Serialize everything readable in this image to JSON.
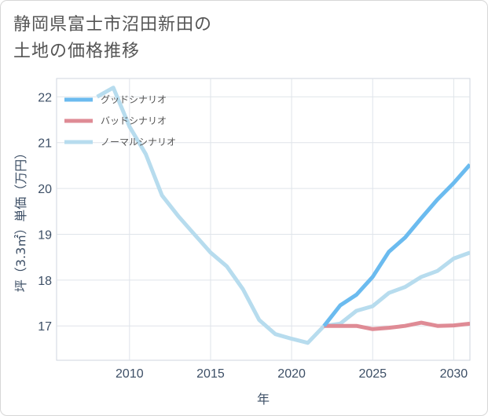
{
  "chart_data": {
    "type": "line",
    "title": [
      "静岡県富士市沼田新田の",
      "土地の価格推移"
    ],
    "xlabel": "年",
    "ylabel": "坪（3.3㎡）単価（万円）",
    "xlim": [
      2005.5,
      2031
    ],
    "ylim": [
      16.25,
      22.4
    ],
    "xticks": [
      2010,
      2015,
      2020,
      2025,
      2030
    ],
    "yticks": [
      17,
      18,
      19,
      20,
      21,
      22
    ],
    "grid": true,
    "legend_position": "top-left",
    "series": [
      {
        "name": "グッドシナリオ",
        "color": "#6bbbef",
        "x": [
          2022,
          2023,
          2024,
          2025,
          2026,
          2027,
          2028,
          2029,
          2030,
          2031
        ],
        "values": [
          17.0,
          17.45,
          17.68,
          18.07,
          18.62,
          18.93,
          19.35,
          19.76,
          20.12,
          20.52
        ]
      },
      {
        "name": "バッドシナリオ",
        "color": "#df8b95",
        "x": [
          2022,
          2023,
          2024,
          2025,
          2026,
          2027,
          2028,
          2029,
          2030,
          2031
        ],
        "values": [
          17.0,
          17.0,
          17.0,
          16.93,
          16.96,
          17.0,
          17.07,
          17.0,
          17.01,
          17.05
        ]
      },
      {
        "name": "ノーマルシナリオ",
        "color": "#b7dcee",
        "x": [
          2008,
          2009,
          2010,
          2011,
          2012,
          2013,
          2014,
          2015,
          2016,
          2017,
          2018,
          2019,
          2020,
          2021,
          2022,
          2023,
          2024,
          2025,
          2026,
          2027,
          2028,
          2029,
          2030,
          2031
        ],
        "values": [
          22.0,
          22.2,
          21.35,
          20.75,
          19.85,
          19.4,
          19.0,
          18.6,
          18.3,
          17.8,
          17.13,
          16.82,
          16.72,
          16.63,
          17.0,
          17.05,
          17.33,
          17.43,
          17.72,
          17.85,
          18.07,
          18.2,
          18.47,
          18.6
        ]
      }
    ]
  }
}
